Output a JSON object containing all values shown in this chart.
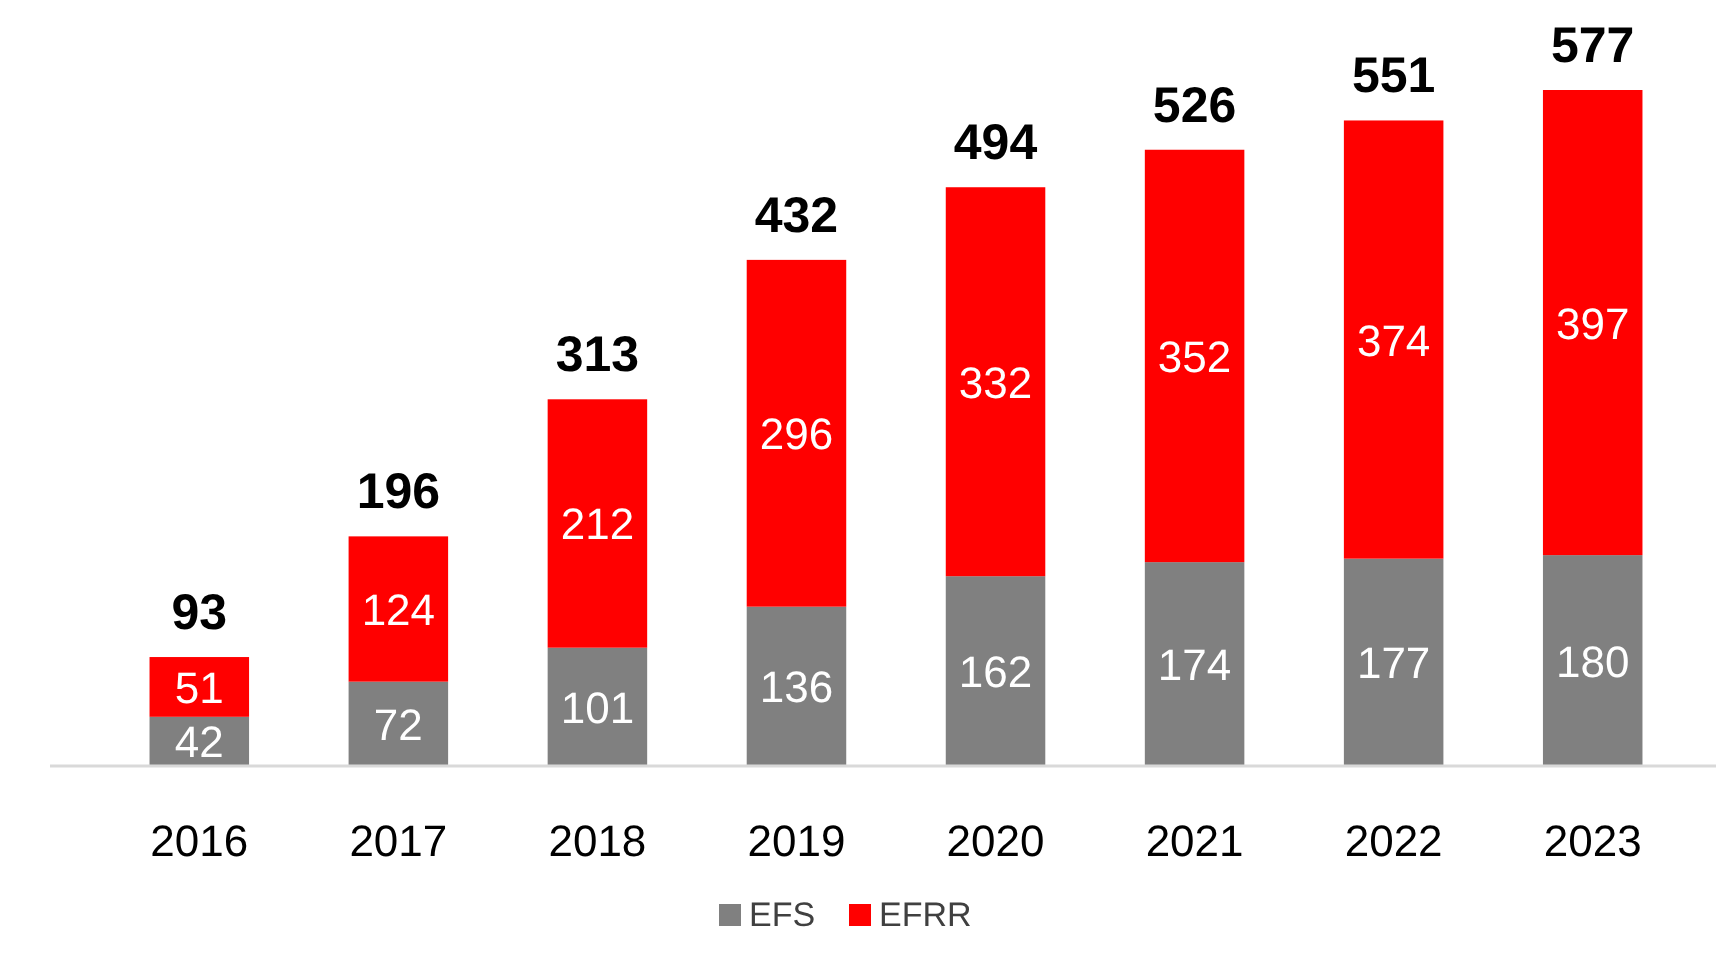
{
  "chart_data": {
    "type": "bar",
    "stacked": true,
    "categories": [
      "2016",
      "2017",
      "2018",
      "2019",
      "2020",
      "2021",
      "2022",
      "2023"
    ],
    "series": [
      {
        "name": "EFS",
        "color": "#808080",
        "values": [
          42,
          72,
          101,
          136,
          162,
          174,
          177,
          180
        ]
      },
      {
        "name": "EFRR",
        "color": "#ff0000",
        "values": [
          51,
          124,
          212,
          296,
          332,
          352,
          374,
          397
        ]
      }
    ],
    "data_labels": true,
    "totals": [
      "93",
      "196",
      "313",
      "432",
      "494",
      "526",
      "551",
      "577"
    ],
    "legend": "bottom"
  }
}
